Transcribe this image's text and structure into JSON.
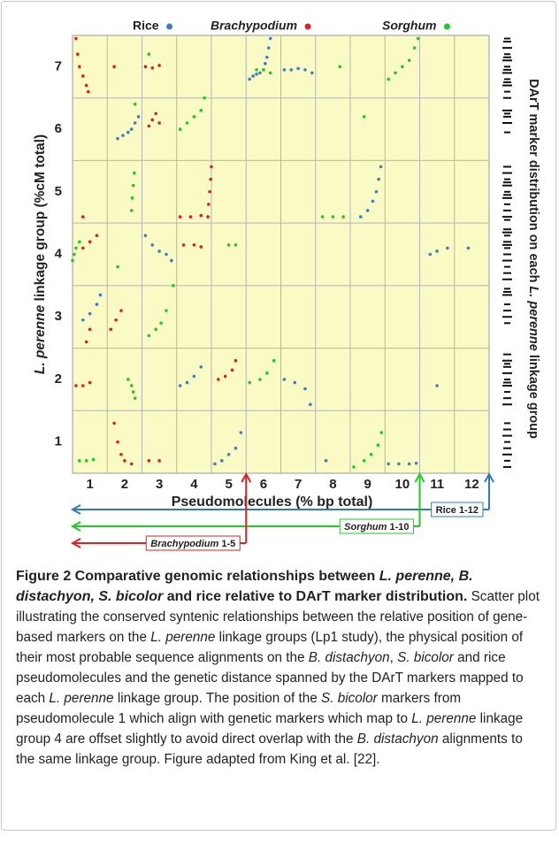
{
  "chart_data": {
    "type": "scatter",
    "xlabel": "Pseudomolecules (% bp total)",
    "ylabel_parts": [
      {
        "text": "L. perenne",
        "italic": true
      },
      {
        "text": " linkage group (%cM total)"
      }
    ],
    "right_label_parts": [
      {
        "text": "DArT marker distribution on each "
      },
      {
        "text": "L. perenne",
        "italic": true
      },
      {
        "text": " linkage group"
      }
    ],
    "xlim": [
      0.5,
      12.5
    ],
    "xticks": [
      1,
      2,
      3,
      4,
      5,
      6,
      7,
      8,
      9,
      10,
      11,
      12
    ],
    "ylim": [
      0.5,
      7.5
    ],
    "yticks": [
      1,
      2,
      3,
      4,
      5,
      6,
      7
    ],
    "background": "#fafac4",
    "series": [
      {
        "name": "Rice",
        "italic": false,
        "color": "#3b7fc4",
        "x": [
          5.6,
          5.7,
          5.8,
          5.9,
          6.0,
          6.05,
          6.1,
          6.15,
          6.2,
          6.6,
          6.8,
          7.0,
          7.2,
          7.4,
          1.8,
          1.95,
          2.1,
          2.2,
          2.3,
          2.4,
          8.8,
          9.0,
          9.15,
          9.25,
          9.32,
          9.38,
          2.6,
          2.8,
          3.0,
          3.2,
          3.35,
          10.8,
          11.0,
          11.3,
          11.9,
          0.8,
          1.0,
          1.2,
          1.3,
          3.6,
          3.8,
          4.0,
          4.2,
          6.6,
          6.9,
          7.2,
          7.35,
          4.6,
          4.8,
          5.0,
          5.2,
          5.35,
          9.6,
          9.9,
          10.2,
          10.4,
          7.8,
          11.0
        ],
        "y": [
          6.8,
          6.85,
          6.88,
          6.9,
          6.95,
          7.05,
          7.15,
          7.3,
          7.45,
          6.95,
          6.95,
          6.97,
          6.95,
          6.9,
          5.85,
          5.9,
          5.95,
          6.0,
          6.1,
          6.2,
          4.6,
          4.7,
          4.85,
          5.0,
          5.2,
          5.4,
          4.3,
          4.15,
          4.05,
          4.0,
          3.9,
          4.0,
          4.05,
          4.1,
          4.1,
          2.95,
          3.05,
          3.2,
          3.35,
          1.9,
          1.95,
          2.05,
          2.2,
          2.0,
          1.95,
          1.85,
          1.6,
          0.65,
          0.7,
          0.8,
          0.9,
          1.15,
          0.65,
          0.65,
          0.65,
          0.66,
          0.7,
          1.9
        ]
      },
      {
        "name": "Brachypodium",
        "italic": true,
        "color": "#e01f1f",
        "x": [
          0.6,
          0.65,
          0.7,
          0.8,
          0.9,
          0.95,
          1.7,
          2.6,
          2.8,
          3.0,
          2.7,
          2.8,
          2.9,
          3.0,
          4.4,
          4.42,
          4.45,
          4.48,
          4.5,
          3.6,
          3.9,
          4.2,
          0.8,
          0.8,
          1.0,
          1.2,
          3.7,
          4.0,
          4.2,
          0.9,
          1.0,
          1.6,
          1.75,
          1.9,
          0.6,
          0.8,
          1.0,
          4.7,
          4.9,
          5.1,
          5.2,
          1.7,
          1.8,
          1.9,
          2.0,
          2.2,
          2.7,
          3.0
        ],
        "y": [
          7.45,
          7.2,
          7.0,
          6.85,
          6.7,
          6.6,
          7.0,
          7.0,
          6.98,
          7.02,
          6.05,
          6.15,
          6.25,
          6.1,
          4.6,
          4.8,
          5.0,
          5.2,
          5.4,
          4.6,
          4.6,
          4.62,
          4.6,
          4.1,
          4.2,
          4.3,
          4.15,
          4.15,
          4.12,
          2.6,
          2.8,
          2.8,
          2.95,
          3.1,
          1.9,
          1.9,
          1.95,
          2.0,
          2.05,
          2.15,
          2.3,
          1.3,
          1.0,
          0.8,
          0.7,
          0.65,
          0.7,
          0.7
        ]
      },
      {
        "name": "Sorghum",
        "italic": true,
        "color": "#22c922",
        "x": [
          9.6,
          9.8,
          10.0,
          10.2,
          10.35,
          10.45,
          5.8,
          6.0,
          6.2,
          2.7,
          8.2,
          3.6,
          3.8,
          4.0,
          4.2,
          4.3,
          2.3,
          8.9,
          2.2,
          2.22,
          2.25,
          2.28,
          7.7,
          8.0,
          8.3,
          0.5,
          0.55,
          0.6,
          0.7,
          5.0,
          5.2,
          1.8,
          2.7,
          2.9,
          3.05,
          3.2,
          3.4,
          2.1,
          2.2,
          2.25,
          2.3,
          5.6,
          5.9,
          6.1,
          6.3,
          0.7,
          0.9,
          1.1,
          8.6,
          8.9,
          9.1,
          9.3,
          9.4
        ],
        "y": [
          6.8,
          6.9,
          7.0,
          7.1,
          7.3,
          7.45,
          6.95,
          6.95,
          6.9,
          7.2,
          7.0,
          6.0,
          6.1,
          6.2,
          6.3,
          6.5,
          6.4,
          6.2,
          4.7,
          4.9,
          5.1,
          5.3,
          4.6,
          4.6,
          4.6,
          3.9,
          4.0,
          4.1,
          4.2,
          4.15,
          4.15,
          3.8,
          2.7,
          2.8,
          2.9,
          3.1,
          3.5,
          2.0,
          1.9,
          1.8,
          1.7,
          1.95,
          2.0,
          2.1,
          2.3,
          0.7,
          0.7,
          0.72,
          0.6,
          0.7,
          0.8,
          0.95,
          1.15
        ]
      }
    ],
    "dart_markers": [
      7.45,
      7.4,
      7.3,
      7.2,
      7.15,
      7.1,
      7.0,
      6.95,
      6.9,
      6.8,
      6.75,
      6.7,
      6.6,
      6.5,
      6.3,
      6.25,
      6.2,
      6.1,
      5.95,
      5.4,
      5.3,
      5.2,
      5.15,
      5.1,
      5.0,
      4.95,
      4.9,
      4.8,
      4.7,
      4.6,
      4.55,
      4.4,
      4.35,
      4.3,
      4.2,
      4.15,
      4.1,
      4.0,
      3.9,
      3.8,
      3.7,
      3.6,
      3.45,
      3.4,
      3.35,
      3.2,
      3.1,
      3.0,
      2.9,
      2.4,
      2.3,
      2.25,
      2.2,
      2.1,
      2.0,
      1.95,
      1.9,
      1.8,
      1.7,
      1.6,
      1.3,
      1.2,
      1.1,
      1.0,
      0.9,
      0.8,
      0.7,
      0.6
    ],
    "ranges": [
      {
        "parts": [
          {
            "text": "Rice"
          },
          {
            "text": " 1-12"
          }
        ],
        "color": "#2f7ab8",
        "start": 1,
        "end": 12
      },
      {
        "parts": [
          {
            "text": "Sorghum",
            "italic": true
          },
          {
            "text": " 1-10"
          }
        ],
        "color": "#22c922",
        "start": 1,
        "end": 10
      },
      {
        "parts": [
          {
            "text": "Brachypodium",
            "italic": true
          },
          {
            "text": " 1-5"
          }
        ],
        "color": "#e01f1f",
        "start": 1,
        "end": 5
      }
    ]
  },
  "caption": {
    "title_parts": [
      {
        "text": "Figure 2 Comparative genomic relationships between "
      },
      {
        "text": "L. perenne, B. distachyon, S. bicolor",
        "italic": true
      },
      {
        "text": " and rice relative to DArT marker distribution."
      }
    ],
    "body_parts": [
      {
        "text": "Scatter plot illustrating the conserved syntenic relationships between the relative position of gene-based markers on the "
      },
      {
        "text": "L. perenne",
        "italic": true
      },
      {
        "text": " linkage groups (Lp1 study), the physical position of their most probable sequence alignments on the "
      },
      {
        "text": "B. distachyon",
        "italic": true
      },
      {
        "text": ", "
      },
      {
        "text": "S. bicolor",
        "italic": true
      },
      {
        "text": " and rice pseudomolecules and the genetic distance spanned by the DArT markers mapped to each "
      },
      {
        "text": "L. perenne",
        "italic": true
      },
      {
        "text": " linkage group. The position of the "
      },
      {
        "text": "S. bicolor",
        "italic": true
      },
      {
        "text": " markers from pseudomolecule 1 which align with genetic markers which map to "
      },
      {
        "text": "L. perenne",
        "italic": true
      },
      {
        "text": " linkage group 4 are offset slightly to avoid direct overlap with the "
      },
      {
        "text": "B. distachyon",
        "italic": true
      },
      {
        "text": " alignments to the same linkage group. Figure adapted from King et al. [22]."
      }
    ]
  }
}
